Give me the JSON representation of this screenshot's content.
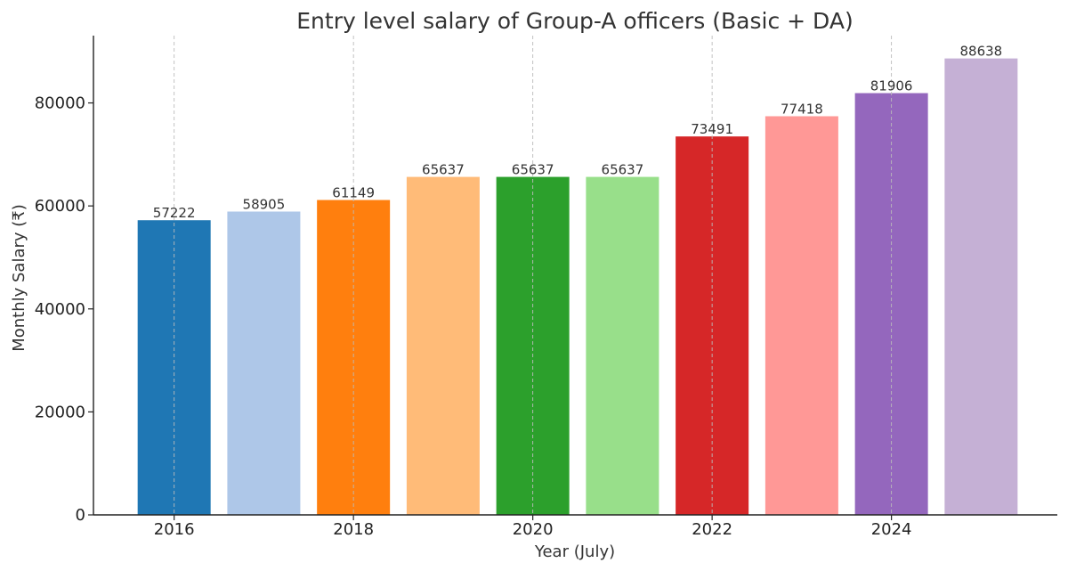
{
  "chart_data": {
    "type": "bar",
    "title": "Entry level salary of Group-A officers (Basic + DA)",
    "xlabel": "Year (July)",
    "ylabel": "Monthly Salary (₹)",
    "x": [
      2016,
      2017,
      2018,
      2019,
      2020,
      2021,
      2022,
      2023,
      2024,
      2025
    ],
    "values": [
      57222,
      58905,
      61149,
      65637,
      65637,
      65637,
      73491,
      77418,
      81906,
      88638
    ],
    "data_labels": [
      "57222",
      "58905",
      "61149",
      "65637",
      "65637",
      "65637",
      "73491",
      "77418",
      "81906",
      "88638"
    ],
    "colors": [
      "#1f77b4",
      "#aec7e8",
      "#ff7f0e",
      "#ffbb78",
      "#2ca02c",
      "#98df8a",
      "#d62728",
      "#ff9896",
      "#9467bd",
      "#c5b0d5"
    ],
    "x_ticks": [
      2016,
      2018,
      2020,
      2022,
      2024
    ],
    "x_tick_labels": [
      "2016",
      "2018",
      "2020",
      "2022",
      "2024"
    ],
    "y_ticks": [
      0,
      20000,
      40000,
      60000,
      80000
    ],
    "y_tick_labels": [
      "0",
      "20000",
      "40000",
      "60000",
      "80000"
    ],
    "xlim": [
      2015.1,
      2025.85
    ],
    "ylim": [
      0,
      93070
    ],
    "grid": "vertical dashed at x ticks",
    "legend": "none"
  }
}
